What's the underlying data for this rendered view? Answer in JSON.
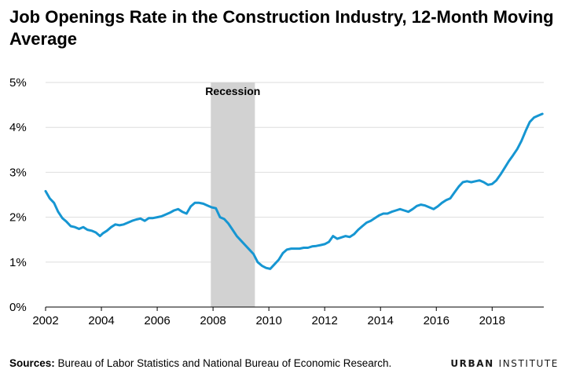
{
  "title": "Job Openings Rate in the Construction Industry, 12-Month Moving Average",
  "source": {
    "label": "Sources:",
    "text": "Bureau of Labor Statistics and National Bureau of Economic Research."
  },
  "brand": {
    "first": "URBAN",
    "second": "INSTITUTE"
  },
  "colors": {
    "line": "#1696d2",
    "recession": "#d2d2d2",
    "grid": "#dedede"
  },
  "chart_data": {
    "type": "line",
    "title": "Job Openings Rate in the Construction Industry, 12-Month Moving Average",
    "xlabel": "",
    "ylabel": "",
    "xlim": [
      2002.0,
      2019.85
    ],
    "ylim": [
      0,
      5
    ],
    "grid": true,
    "x_ticks": [
      2002,
      2004,
      2006,
      2008,
      2010,
      2012,
      2014,
      2016,
      2018
    ],
    "x_tick_labels": [
      "2002",
      "2004",
      "2006",
      "2008",
      "2010",
      "2012",
      "2014",
      "2016",
      "2018"
    ],
    "y_ticks": [
      0,
      1,
      2,
      3,
      4,
      5
    ],
    "y_tick_labels": [
      "0%",
      "1%",
      "2%",
      "3%",
      "4%",
      "5%"
    ],
    "annotations": [
      {
        "type": "shaded_region",
        "x_start": 2007.92,
        "x_end": 2009.5,
        "label": "Recession"
      }
    ],
    "series": [
      {
        "x": [
          2002.0,
          2002.15,
          2002.3,
          2002.45,
          2002.6,
          2002.75,
          2002.9,
          2003.05,
          2003.2,
          2003.35,
          2003.5,
          2003.65,
          2003.8,
          2003.95,
          2004.05,
          2004.2,
          2004.35,
          2004.5,
          2004.65,
          2004.8,
          2004.95,
          2005.1,
          2005.25,
          2005.4,
          2005.55,
          2005.7,
          2005.85,
          2006.0,
          2006.15,
          2006.3,
          2006.45,
          2006.6,
          2006.75,
          2006.9,
          2007.05,
          2007.2,
          2007.35,
          2007.5,
          2007.65,
          2007.8,
          2007.95,
          2008.1,
          2008.25,
          2008.4,
          2008.55,
          2008.7,
          2008.85,
          2009.0,
          2009.15,
          2009.3,
          2009.45,
          2009.6,
          2009.75,
          2009.9,
          2010.05,
          2010.2,
          2010.35,
          2010.5,
          2010.65,
          2010.8,
          2010.95,
          2011.1,
          2011.25,
          2011.4,
          2011.55,
          2011.7,
          2011.85,
          2012.0,
          2012.15,
          2012.3,
          2012.45,
          2012.6,
          2012.75,
          2012.9,
          2013.05,
          2013.2,
          2013.35,
          2013.5,
          2013.65,
          2013.8,
          2013.95,
          2014.1,
          2014.25,
          2014.4,
          2014.55,
          2014.7,
          2014.85,
          2015.0,
          2015.15,
          2015.3,
          2015.45,
          2015.6,
          2015.75,
          2015.9,
          2016.05,
          2016.2,
          2016.35,
          2016.5,
          2016.65,
          2016.8,
          2016.95,
          2017.1,
          2017.25,
          2017.4,
          2017.55,
          2017.7,
          2017.85,
          2018.0,
          2018.15,
          2018.3,
          2018.45,
          2018.6,
          2018.75,
          2018.9,
          2019.05,
          2019.2,
          2019.35,
          2019.5,
          2019.65,
          2019.8
        ],
        "y": [
          2.58,
          2.42,
          2.32,
          2.12,
          1.98,
          1.9,
          1.8,
          1.78,
          1.74,
          1.78,
          1.72,
          1.7,
          1.66,
          1.58,
          1.64,
          1.7,
          1.78,
          1.84,
          1.82,
          1.84,
          1.88,
          1.92,
          1.95,
          1.97,
          1.92,
          1.98,
          1.98,
          2.0,
          2.02,
          2.06,
          2.1,
          2.15,
          2.18,
          2.12,
          2.08,
          2.24,
          2.32,
          2.32,
          2.3,
          2.26,
          2.22,
          2.2,
          2.0,
          1.96,
          1.86,
          1.72,
          1.58,
          1.48,
          1.38,
          1.28,
          1.18,
          1.0,
          0.92,
          0.87,
          0.85,
          0.95,
          1.05,
          1.2,
          1.28,
          1.3,
          1.3,
          1.3,
          1.32,
          1.32,
          1.35,
          1.36,
          1.38,
          1.4,
          1.45,
          1.58,
          1.52,
          1.55,
          1.58,
          1.56,
          1.62,
          1.72,
          1.8,
          1.88,
          1.92,
          1.98,
          2.04,
          2.08,
          2.08,
          2.12,
          2.15,
          2.18,
          2.15,
          2.12,
          2.18,
          2.25,
          2.28,
          2.26,
          2.22,
          2.18,
          2.24,
          2.32,
          2.38,
          2.42,
          2.55,
          2.68,
          2.78,
          2.8,
          2.78,
          2.8,
          2.82,
          2.78,
          2.72,
          2.74,
          2.82,
          2.95,
          3.1,
          3.25,
          3.38,
          3.52,
          3.7,
          3.92,
          4.12,
          4.22,
          4.26,
          4.3
        ]
      }
    ]
  }
}
